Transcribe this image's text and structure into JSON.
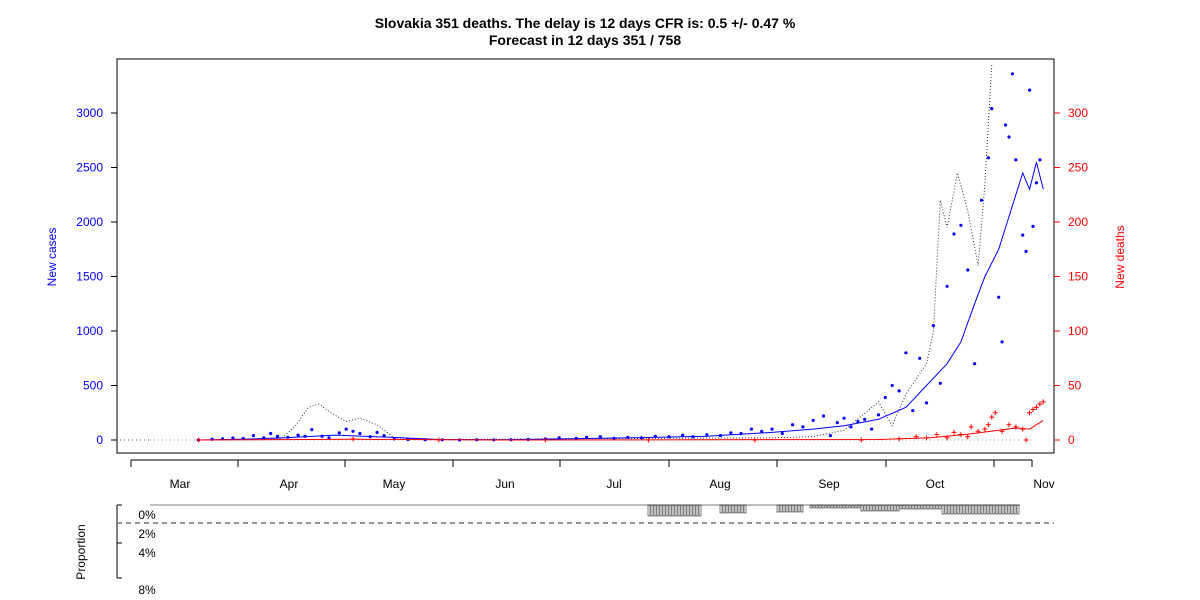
{
  "chart_data": {
    "type": "line",
    "title": "Slovakia 351 deaths. The delay is 12 days CFR is: 0.5 +/- 0.47 %",
    "subtitle": "Forecast in 12 days 351 / 758",
    "ylabel": "New cases",
    "y2label": "New deaths",
    "bottom_ylabel": "Proportion",
    "months": [
      "Mar",
      "Apr",
      "May",
      "Jun",
      "Jul",
      "Aug",
      "Sep",
      "Oct",
      "Nov"
    ],
    "yticks": [
      0,
      500,
      1000,
      1500,
      2000,
      2500,
      3000
    ],
    "y2ticks": [
      0,
      50,
      100,
      150,
      200,
      250,
      300
    ],
    "proportion_ticks": [
      "0%",
      "2%",
      "4%",
      "8%"
    ],
    "ylim": [
      -120,
      3450
    ],
    "y2lim": [
      -12,
      345
    ],
    "x_range": [
      "2020-02-20",
      "2020-11-04"
    ],
    "grid": false,
    "colors": {
      "cases": "#0000ff",
      "deaths": "#ff0000",
      "axis": "#000000",
      "dotted": "#555555"
    },
    "series": [
      {
        "name": "New cases",
        "style": "points",
        "points": [
          [
            "2020-03-06",
            0
          ],
          [
            "2020-03-10",
            7
          ],
          [
            "2020-03-13",
            10
          ],
          [
            "2020-03-16",
            18
          ],
          [
            "2020-03-19",
            14
          ],
          [
            "2020-03-22",
            40
          ],
          [
            "2020-03-25",
            20
          ],
          [
            "2020-03-27",
            60
          ],
          [
            "2020-03-29",
            33
          ],
          [
            "2020-04-01",
            25
          ],
          [
            "2020-04-04",
            45
          ],
          [
            "2020-04-06",
            35
          ],
          [
            "2020-04-08",
            95
          ],
          [
            "2020-04-11",
            35
          ],
          [
            "2020-04-13",
            20
          ],
          [
            "2020-04-16",
            65
          ],
          [
            "2020-04-18",
            100
          ],
          [
            "2020-04-20",
            80
          ],
          [
            "2020-04-22",
            60
          ],
          [
            "2020-04-25",
            30
          ],
          [
            "2020-04-27",
            70
          ],
          [
            "2020-04-29",
            40
          ],
          [
            "2020-05-02",
            10
          ],
          [
            "2020-05-06",
            5
          ],
          [
            "2020-05-11",
            3
          ],
          [
            "2020-05-16",
            2
          ],
          [
            "2020-05-21",
            0
          ],
          [
            "2020-05-26",
            2
          ],
          [
            "2020-05-31",
            1
          ],
          [
            "2020-06-05",
            3
          ],
          [
            "2020-06-10",
            5
          ],
          [
            "2020-06-15",
            10
          ],
          [
            "2020-06-19",
            20
          ],
          [
            "2020-06-24",
            15
          ],
          [
            "2020-06-27",
            25
          ],
          [
            "2020-07-01",
            30
          ],
          [
            "2020-07-05",
            15
          ],
          [
            "2020-07-09",
            25
          ],
          [
            "2020-07-13",
            20
          ],
          [
            "2020-07-17",
            35
          ],
          [
            "2020-07-21",
            30
          ],
          [
            "2020-07-25",
            45
          ],
          [
            "2020-07-28",
            30
          ],
          [
            "2020-08-01",
            50
          ],
          [
            "2020-08-05",
            40
          ],
          [
            "2020-08-08",
            65
          ],
          [
            "2020-08-11",
            60
          ],
          [
            "2020-08-14",
            100
          ],
          [
            "2020-08-17",
            80
          ],
          [
            "2020-08-20",
            100
          ],
          [
            "2020-08-23",
            60
          ],
          [
            "2020-08-26",
            140
          ],
          [
            "2020-08-29",
            120
          ],
          [
            "2020-09-01",
            180
          ],
          [
            "2020-09-04",
            220
          ],
          [
            "2020-09-06",
            40
          ],
          [
            "2020-09-08",
            160
          ],
          [
            "2020-09-10",
            200
          ],
          [
            "2020-09-12",
            120
          ],
          [
            "2020-09-14",
            170
          ],
          [
            "2020-09-16",
            190
          ],
          [
            "2020-09-18",
            100
          ],
          [
            "2020-09-20",
            230
          ],
          [
            "2020-09-22",
            390
          ],
          [
            "2020-09-24",
            500
          ],
          [
            "2020-09-26",
            450
          ],
          [
            "2020-09-28",
            800
          ],
          [
            "2020-09-30",
            270
          ],
          [
            "2020-10-02",
            750
          ],
          [
            "2020-10-04",
            340
          ],
          [
            "2020-10-06",
            1050
          ],
          [
            "2020-10-08",
            520
          ],
          [
            "2020-10-10",
            1410
          ],
          [
            "2020-10-12",
            1890
          ],
          [
            "2020-10-14",
            1970
          ],
          [
            "2020-10-16",
            1560
          ],
          [
            "2020-10-18",
            700
          ],
          [
            "2020-10-20",
            2200
          ],
          [
            "2020-10-22",
            2590
          ],
          [
            "2020-10-23",
            3040
          ],
          [
            "2020-10-25",
            1310
          ],
          [
            "2020-10-26",
            900
          ],
          [
            "2020-10-27",
            2890
          ],
          [
            "2020-10-28",
            2780
          ],
          [
            "2020-10-29",
            3360
          ],
          [
            "2020-10-30",
            2570
          ],
          [
            "2020-11-01",
            1880
          ],
          [
            "2020-11-02",
            1730
          ],
          [
            "2020-11-03",
            3210
          ],
          [
            "2020-11-04",
            1960
          ],
          [
            "2020-11-05",
            2360
          ],
          [
            "2020-11-06",
            2570
          ]
        ]
      },
      {
        "name": "New cases (smoothed)",
        "style": "line",
        "points": [
          [
            "2020-03-06",
            0
          ],
          [
            "2020-03-20",
            8
          ],
          [
            "2020-04-01",
            22
          ],
          [
            "2020-04-15",
            45
          ],
          [
            "2020-05-01",
            25
          ],
          [
            "2020-05-15",
            5
          ],
          [
            "2020-06-01",
            2
          ],
          [
            "2020-06-20",
            10
          ],
          [
            "2020-07-10",
            20
          ],
          [
            "2020-08-01",
            35
          ],
          [
            "2020-08-20",
            70
          ],
          [
            "2020-09-01",
            100
          ],
          [
            "2020-09-10",
            130
          ],
          [
            "2020-09-20",
            190
          ],
          [
            "2020-09-28",
            300
          ],
          [
            "2020-10-04",
            500
          ],
          [
            "2020-10-10",
            700
          ],
          [
            "2020-10-14",
            900
          ],
          [
            "2020-10-18",
            1250
          ],
          [
            "2020-10-21",
            1500
          ],
          [
            "2020-10-25",
            1750
          ],
          [
            "2020-10-28",
            2050
          ],
          [
            "2020-11-01",
            2450
          ],
          [
            "2020-11-03",
            2300
          ],
          [
            "2020-11-05",
            2550
          ],
          [
            "2020-11-07",
            2300
          ]
        ]
      },
      {
        "name": "New deaths",
        "style": "plus",
        "points": [
          [
            "2020-03-06",
            0
          ],
          [
            "2020-04-20",
            1
          ],
          [
            "2020-05-15",
            0
          ],
          [
            "2020-06-15",
            0
          ],
          [
            "2020-07-15",
            0
          ],
          [
            "2020-08-15",
            0
          ],
          [
            "2020-09-15",
            0
          ],
          [
            "2020-09-26",
            1
          ],
          [
            "2020-10-01",
            3
          ],
          [
            "2020-10-04",
            2
          ],
          [
            "2020-10-07",
            5
          ],
          [
            "2020-10-10",
            2
          ],
          [
            "2020-10-12",
            7
          ],
          [
            "2020-10-14",
            5
          ],
          [
            "2020-10-16",
            3
          ],
          [
            "2020-10-17",
            12
          ],
          [
            "2020-10-19",
            8
          ],
          [
            "2020-10-21",
            10
          ],
          [
            "2020-10-22",
            14
          ],
          [
            "2020-10-23",
            21
          ],
          [
            "2020-10-24",
            25
          ],
          [
            "2020-10-26",
            8
          ],
          [
            "2020-10-28",
            14
          ],
          [
            "2020-10-30",
            12
          ],
          [
            "2020-11-01",
            10
          ],
          [
            "2020-11-02",
            0
          ],
          [
            "2020-11-03",
            25
          ],
          [
            "2020-11-04",
            28
          ],
          [
            "2020-11-05",
            30
          ],
          [
            "2020-11-06",
            33
          ],
          [
            "2020-11-07",
            35
          ]
        ]
      },
      {
        "name": "New deaths (smoothed)",
        "style": "line",
        "points": [
          [
            "2020-03-06",
            0
          ],
          [
            "2020-04-20",
            0.6
          ],
          [
            "2020-06-01",
            0
          ],
          [
            "2020-09-20",
            0.5
          ],
          [
            "2020-10-05",
            2
          ],
          [
            "2020-10-15",
            5
          ],
          [
            "2020-10-25",
            9
          ],
          [
            "2020-10-30",
            11
          ],
          [
            "2020-11-03",
            10
          ],
          [
            "2020-11-07",
            18
          ]
        ]
      }
    ]
  }
}
